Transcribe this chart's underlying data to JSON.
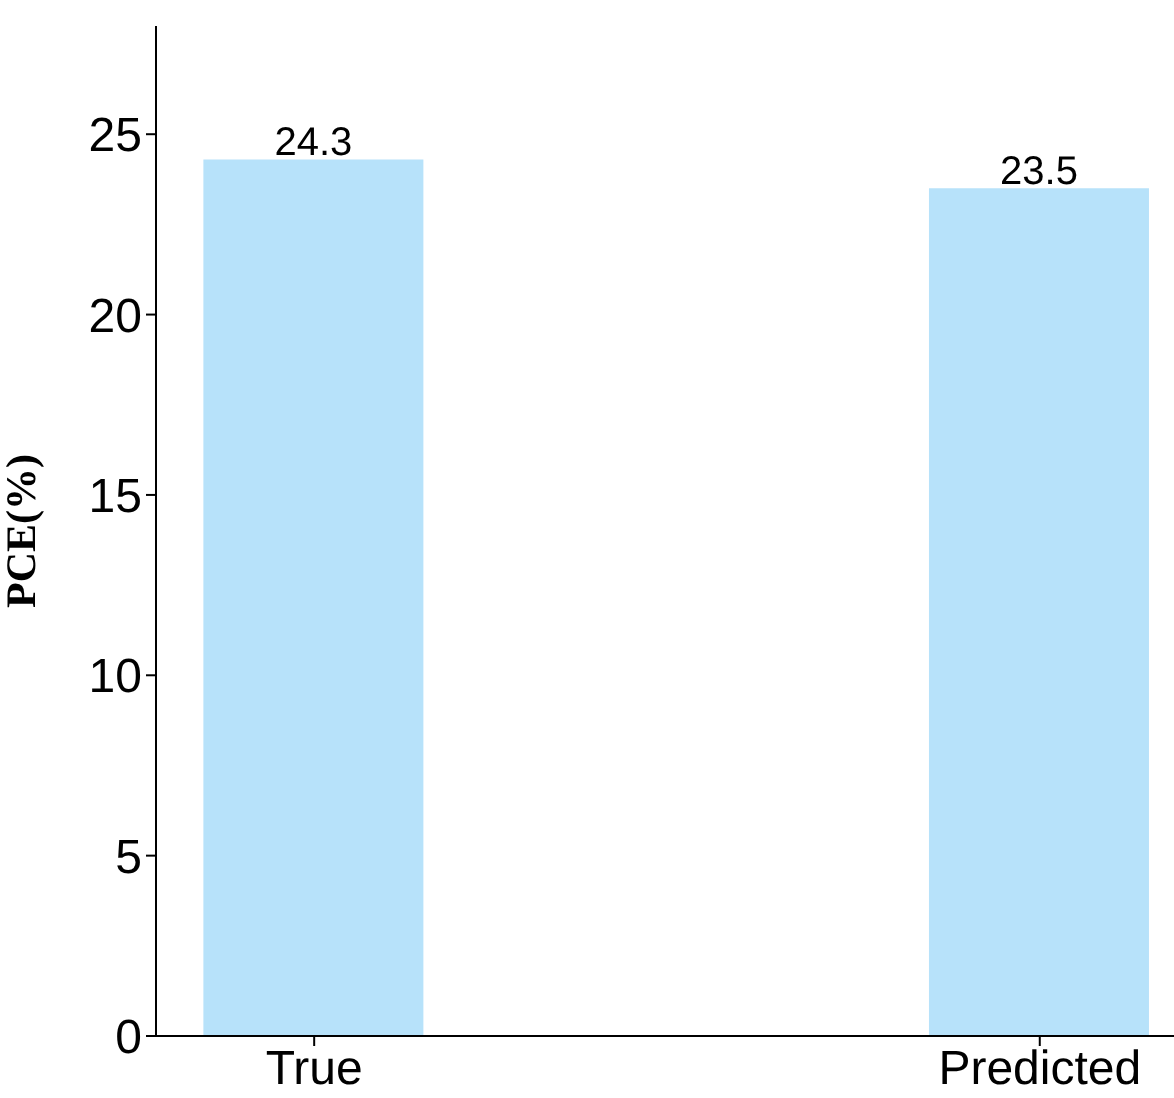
{
  "chart_data": {
    "type": "bar",
    "categories": [
      "True",
      "Predicted"
    ],
    "values": [
      24.3,
      23.5
    ],
    "color": "#b7e2fa",
    "ylabel": "PCE(%)",
    "ylim": [
      0,
      28
    ],
    "yticks": [
      0,
      5,
      10,
      15,
      20,
      25
    ],
    "data_labels": true,
    "grid": false,
    "legend": false
  }
}
